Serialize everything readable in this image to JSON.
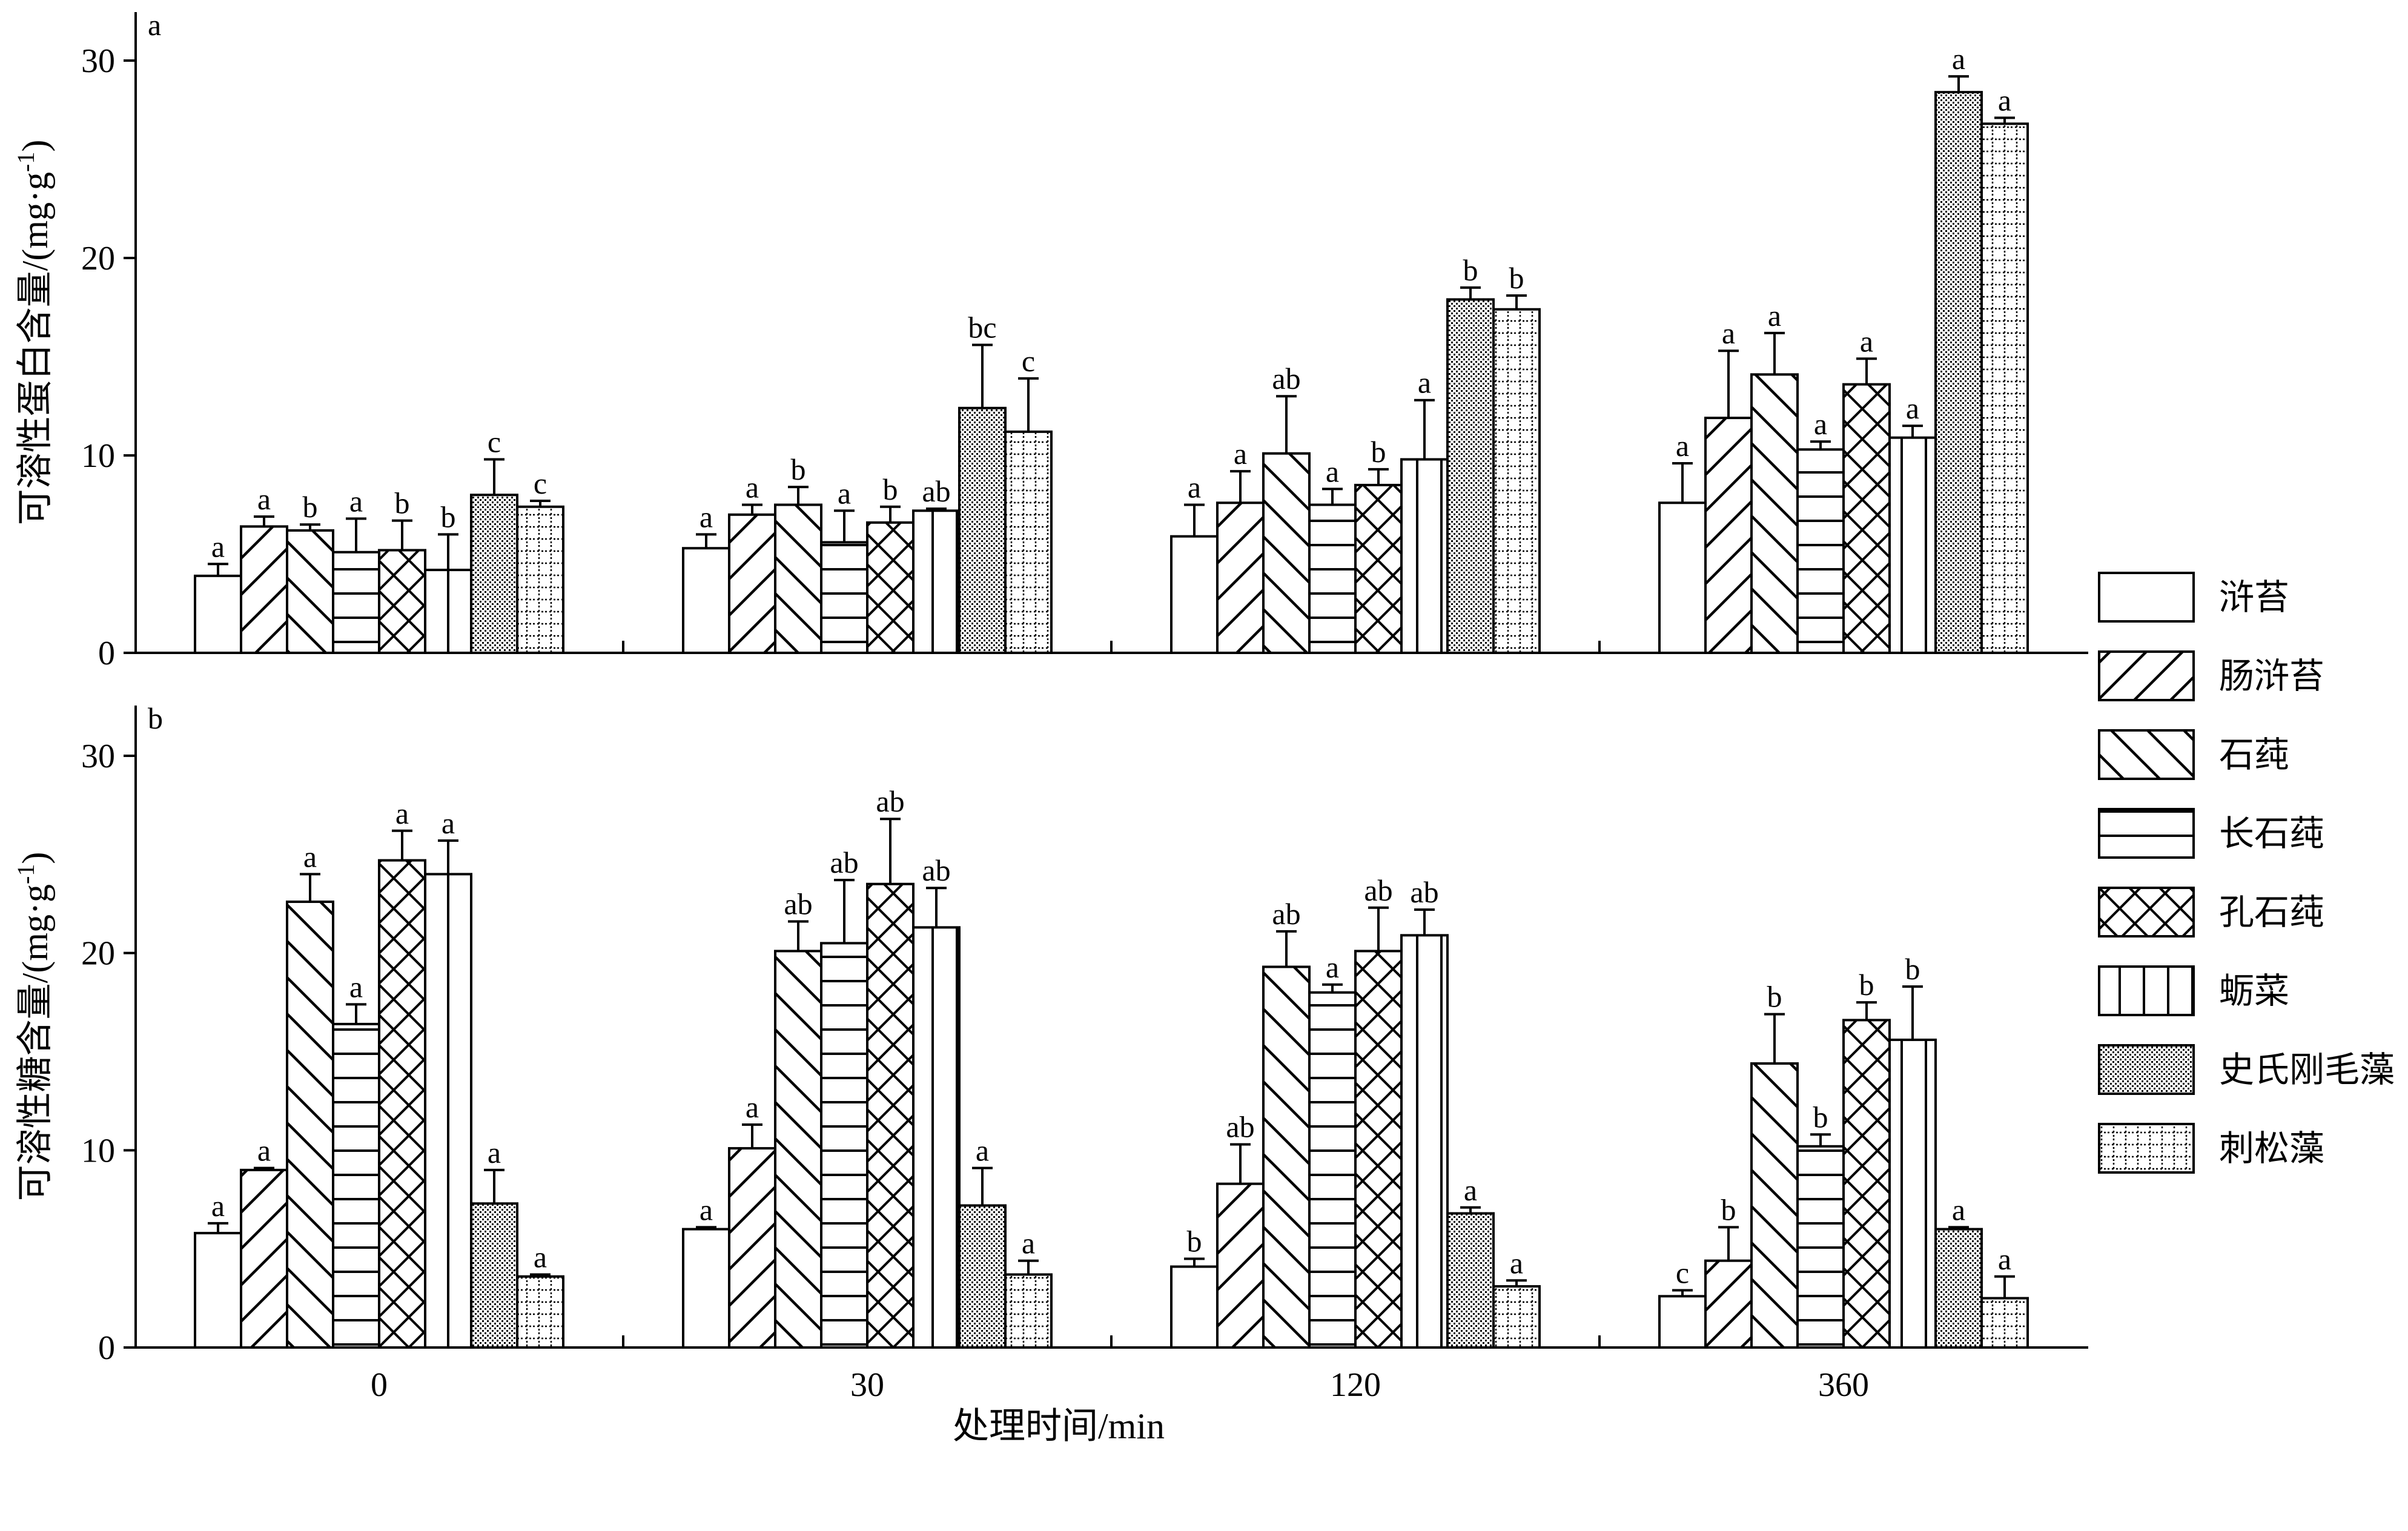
{
  "chart_data": {
    "type": "bar",
    "categories": [
      "0",
      "30",
      "120",
      "360"
    ],
    "series_names": [
      "浒苔",
      "肠浒苔",
      "石莼",
      "长石莼",
      "孔石莼",
      "蛎菜",
      "史氏刚毛藻",
      "刺松藻"
    ],
    "patterns": [
      "blank",
      "forward-diagonal",
      "backward-diagonal",
      "horizontal-lines",
      "crosshatch",
      "vertical-lines",
      "fine-dots",
      "dotted-grid"
    ],
    "xlabel": "处理时间/min",
    "panels": [
      {
        "tag": "a",
        "ylabel_text": "可溶性蛋白含量/(mg·g",
        "ylabel_sup": "-1",
        "ylabel_close": ")",
        "ylim": [
          0,
          30
        ],
        "yticks": [
          "0",
          "10",
          "20",
          "30"
        ],
        "series": [
          {
            "name": "浒苔",
            "values": [
              3.9,
              5.3,
              5.9,
              7.6
            ],
            "errors": [
              0.6,
              0.7,
              1.6,
              2.0
            ],
            "labels": [
              "a",
              "a",
              "a",
              "a"
            ]
          },
          {
            "name": "肠浒苔",
            "values": [
              6.4,
              7.0,
              7.6,
              11.9
            ],
            "errors": [
              0.5,
              0.5,
              1.6,
              3.4
            ],
            "labels": [
              "a",
              "a",
              "a",
              "a"
            ]
          },
          {
            "name": "石莼",
            "values": [
              6.2,
              7.5,
              10.1,
              14.1
            ],
            "errors": [
              0.3,
              0.9,
              2.9,
              2.1
            ],
            "labels": [
              "b",
              "b",
              "ab",
              "a"
            ]
          },
          {
            "name": "长石莼",
            "values": [
              5.1,
              5.6,
              7.5,
              10.3
            ],
            "errors": [
              1.7,
              1.6,
              0.8,
              0.4
            ],
            "labels": [
              "a",
              "a",
              "a",
              "a"
            ]
          },
          {
            "name": "孔石莼",
            "values": [
              5.2,
              6.6,
              8.5,
              13.6
            ],
            "errors": [
              1.5,
              0.8,
              0.8,
              1.3
            ],
            "labels": [
              "b",
              "b",
              "b",
              "a"
            ]
          },
          {
            "name": "蛎菜",
            "values": [
              4.2,
              7.2,
              9.8,
              10.9
            ],
            "errors": [
              1.8,
              0.1,
              3.0,
              0.6
            ],
            "labels": [
              "b",
              "ab",
              "a",
              "a"
            ]
          },
          {
            "name": "史氏刚毛藻",
            "values": [
              8.0,
              12.4,
              17.9,
              28.4
            ],
            "errors": [
              1.8,
              3.2,
              0.6,
              0.8
            ],
            "labels": [
              "c",
              "bc",
              "b",
              "a"
            ]
          },
          {
            "name": "刺松藻",
            "values": [
              7.4,
              11.2,
              17.4,
              26.8
            ],
            "errors": [
              0.3,
              2.7,
              0.7,
              0.3
            ],
            "labels": [
              "c",
              "c",
              "b",
              "a"
            ]
          }
        ]
      },
      {
        "tag": "b",
        "ylabel_text": "可溶性糖含量/(mg·g",
        "ylabel_sup": "-1",
        "ylabel_close": ")",
        "ylim": [
          0,
          30
        ],
        "yticks": [
          "0",
          "10",
          "20",
          "30"
        ],
        "series": [
          {
            "name": "浒苔",
            "values": [
              5.8,
              6.0,
              4.1,
              2.6
            ],
            "errors": [
              0.5,
              0.1,
              0.4,
              0.3
            ],
            "labels": [
              "a",
              "a",
              "b",
              "c"
            ]
          },
          {
            "name": "肠浒苔",
            "values": [
              9.0,
              10.1,
              8.3,
              4.4
            ],
            "errors": [
              0.1,
              1.2,
              2.0,
              1.7
            ],
            "labels": [
              "a",
              "a",
              "ab",
              "b"
            ]
          },
          {
            "name": "石莼",
            "values": [
              22.6,
              20.1,
              19.3,
              14.4
            ],
            "errors": [
              1.4,
              1.5,
              1.8,
              2.5
            ],
            "labels": [
              "a",
              "ab",
              "ab",
              "b"
            ]
          },
          {
            "name": "长石莼",
            "values": [
              16.4,
              20.5,
              18.0,
              10.2
            ],
            "errors": [
              1.0,
              3.2,
              0.4,
              0.6
            ],
            "labels": [
              "a",
              "ab",
              "a",
              "b"
            ]
          },
          {
            "name": "孔石莼",
            "values": [
              24.7,
              23.5,
              20.1,
              16.6
            ],
            "errors": [
              1.5,
              3.3,
              2.2,
              0.9
            ],
            "labels": [
              "a",
              "ab",
              "ab",
              "b"
            ]
          },
          {
            "name": "蛎菜",
            "values": [
              24.0,
              21.3,
              20.9,
              15.6
            ],
            "errors": [
              1.7,
              2.0,
              1.3,
              2.7
            ],
            "labels": [
              "a",
              "ab",
              "ab",
              "b"
            ]
          },
          {
            "name": "史氏刚毛藻",
            "values": [
              7.3,
              7.2,
              6.8,
              6.0
            ],
            "errors": [
              1.7,
              1.9,
              0.3,
              0.1
            ],
            "labels": [
              "a",
              "a",
              "a",
              "a"
            ]
          },
          {
            "name": "刺松藻",
            "values": [
              3.6,
              3.7,
              3.1,
              2.5
            ],
            "errors": [
              0.1,
              0.7,
              0.3,
              1.1
            ],
            "labels": [
              "a",
              "a",
              "a",
              "a"
            ]
          }
        ]
      }
    ]
  }
}
